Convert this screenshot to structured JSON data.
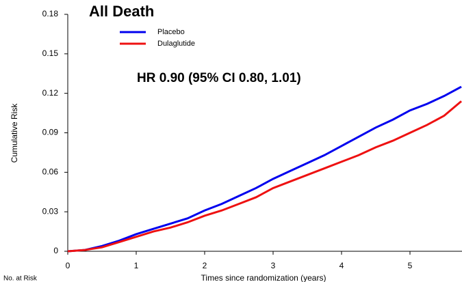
{
  "chart_data": {
    "type": "line",
    "title": "All Death",
    "annotation": "HR 0.90 (95% CI 0.80, 1.01)",
    "xlabel": "Times since randomization (years)",
    "ylabel": "Cumulative Risk",
    "table_label": "No. at Risk",
    "x": [
      0,
      0.25,
      0.5,
      0.75,
      1,
      1.25,
      1.5,
      1.75,
      2,
      2.25,
      2.5,
      2.75,
      3,
      3.25,
      3.5,
      3.75,
      4,
      4.25,
      4.5,
      4.75,
      5,
      5.25,
      5.5,
      5.75
    ],
    "series": [
      {
        "name": "Placebo",
        "color": "#0000ee",
        "values": [
          0,
          0.001,
          0.004,
          0.008,
          0.013,
          0.017,
          0.021,
          0.025,
          0.031,
          0.036,
          0.042,
          0.048,
          0.055,
          0.061,
          0.067,
          0.073,
          0.08,
          0.087,
          0.094,
          0.1,
          0.107,
          0.112,
          0.118,
          0.125
        ]
      },
      {
        "name": "Dulaglutide",
        "color": "#ee1111",
        "values": [
          0,
          0.001,
          0.003,
          0.007,
          0.011,
          0.015,
          0.018,
          0.022,
          0.027,
          0.031,
          0.036,
          0.041,
          0.048,
          0.053,
          0.058,
          0.063,
          0.068,
          0.073,
          0.079,
          0.084,
          0.09,
          0.096,
          0.103,
          0.114
        ]
      }
    ],
    "xlim": [
      0,
      5.76
    ],
    "xticks": [
      0,
      1,
      2,
      3,
      4,
      5
    ],
    "ylim": [
      0,
      0.18
    ],
    "yticks": [
      0,
      0.03,
      0.06,
      0.09,
      0.12,
      0.15,
      0.18
    ],
    "grid": false
  }
}
